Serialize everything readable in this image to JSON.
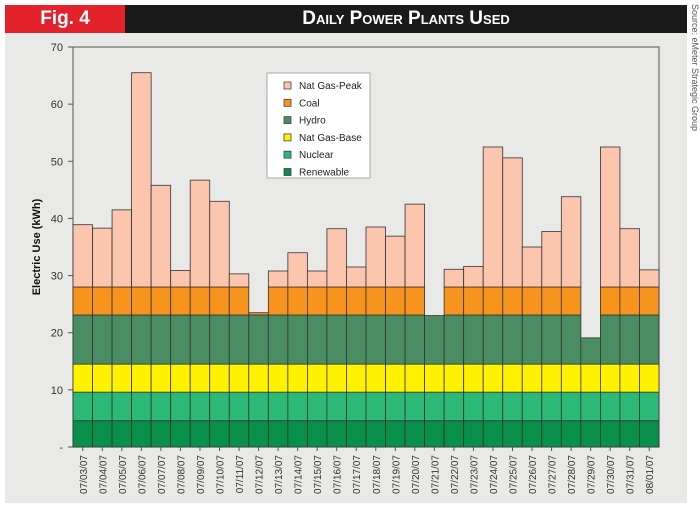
{
  "header": {
    "fig_label": "Fig. 4",
    "title": "Daily Power Plants Used",
    "source": "Source: eMeter Strategic Group"
  },
  "chart_data": {
    "type": "bar",
    "stacked": true,
    "title": "Daily Power Plants Used",
    "ylabel": "Electric Use (kWh)",
    "xlabel": "",
    "ylim": [
      0,
      70
    ],
    "yticks": [
      0,
      10,
      20,
      30,
      40,
      50,
      60,
      70
    ],
    "ytick_labels": [
      "-",
      "10",
      "20",
      "30",
      "40",
      "50",
      "60",
      "70"
    ],
    "legend_position": "top-center",
    "categories": [
      "07/03/07",
      "07/04/07",
      "07/05/07",
      "07/06/07",
      "07/07/07",
      "07/08/07",
      "07/09/07",
      "07/10/07",
      "07/11/07",
      "07/12/07",
      "07/13/07",
      "07/14/07",
      "07/15/07",
      "07/16/07",
      "07/17/07",
      "07/18/07",
      "07/19/07",
      "07/20/07",
      "07/21/07",
      "07/22/07",
      "07/23/07",
      "07/24/07",
      "07/25/07",
      "07/26/07",
      "07/27/07",
      "07/28/07",
      "07/29/07",
      "07/30/07",
      "07/31/07",
      "08/01/07"
    ],
    "totals": [
      38.9,
      38.3,
      41.5,
      65.5,
      45.8,
      30.9,
      46.7,
      43.0,
      30.3,
      23.5,
      30.8,
      34.0,
      30.8,
      38.2,
      31.5,
      38.5,
      36.9,
      42.5,
      23.0,
      31.1,
      31.6,
      52.5,
      50.6,
      35.0,
      37.7,
      43.8,
      19.1,
      52.5,
      38.2,
      31.0
    ],
    "series": [
      {
        "name": "Renewable",
        "color": "#08904a",
        "capacity": 4.6
      },
      {
        "name": "Nuclear",
        "color": "#2cb877",
        "capacity": 5.0
      },
      {
        "name": "Nat Gas-Base",
        "color": "#fff200",
        "capacity": 4.9
      },
      {
        "name": "Hydro",
        "color": "#4a8d63",
        "capacity": 8.6
      },
      {
        "name": "Coal",
        "color": "#f7941d",
        "capacity": 4.9
      },
      {
        "name": "Nat Gas-Peak",
        "color": "#fcc5ae",
        "capacity": null
      }
    ],
    "legend_order": [
      "Nat Gas-Peak",
      "Coal",
      "Hydro",
      "Nat Gas-Base",
      "Nuclear",
      "Renewable"
    ]
  }
}
